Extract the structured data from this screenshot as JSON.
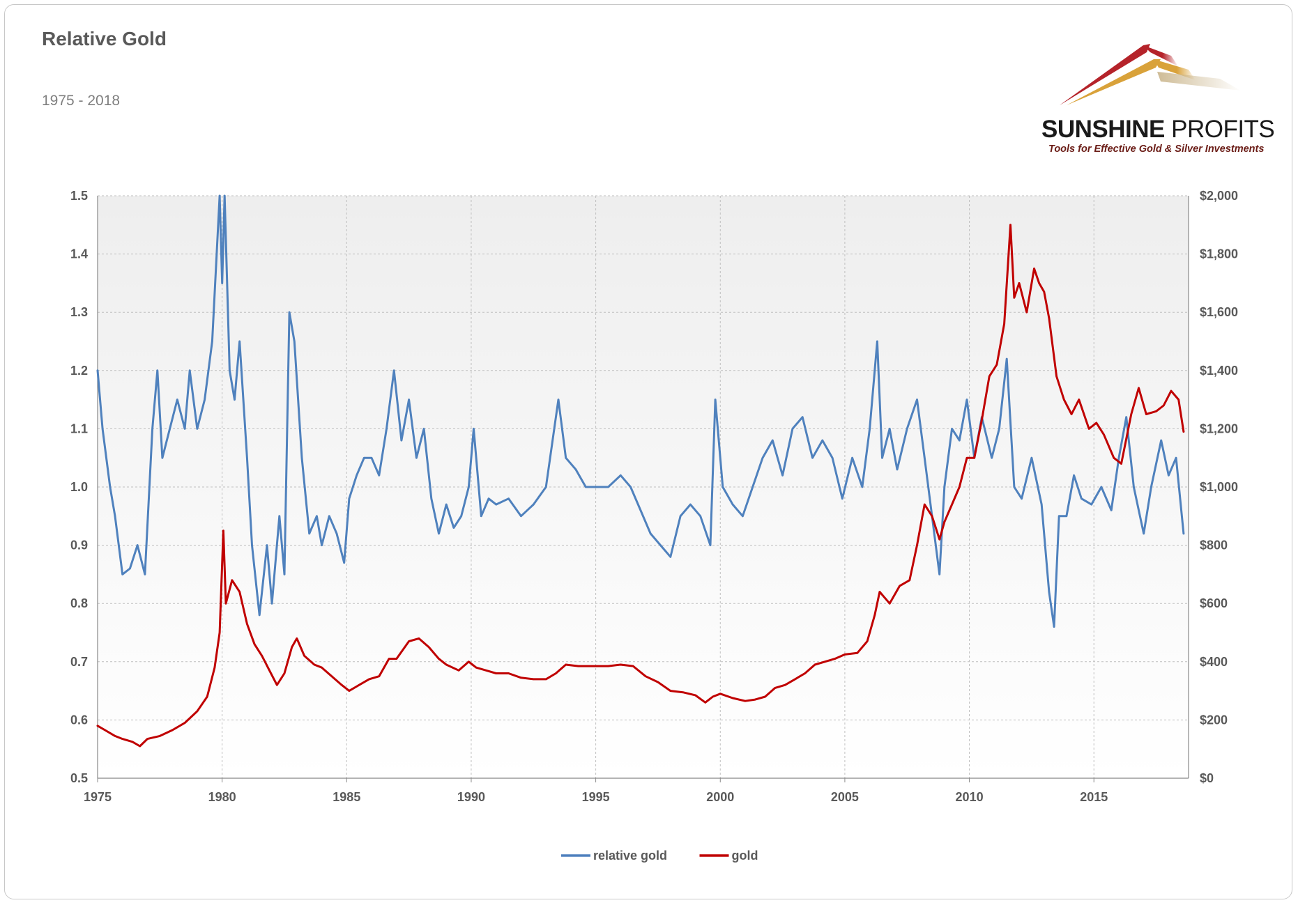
{
  "title": "Relative Gold",
  "subtitle": "1975 - 2018",
  "logo": {
    "brand_bold": "SUNSHINE",
    "brand_light": "PROFITS",
    "tagline": "Tools for Effective Gold & Silver Investments",
    "colors": [
      "#b5232a",
      "#d9a23a",
      "#c9b48a"
    ]
  },
  "colors": {
    "relative_gold": "#4f81bd",
    "gold": "#c00000",
    "plot_bg_top": "#eeeeee",
    "plot_bg_bottom": "#ffffff",
    "grid": "#bfbfbf"
  },
  "chart_data": {
    "type": "line",
    "title": "Relative Gold",
    "subtitle": "1975 - 2018",
    "x_ticks": [
      "1975",
      "1980",
      "1985",
      "1990",
      "1995",
      "2000",
      "2005",
      "2010",
      "2015"
    ],
    "x_range": [
      1975,
      2018.8
    ],
    "y_left_range": [
      0.5,
      1.5
    ],
    "y_left_ticks": [
      "0.5",
      "0.6",
      "0.7",
      "0.8",
      "0.9",
      "1.0",
      "1.1",
      "1.2",
      "1.3",
      "1.4",
      "1.5"
    ],
    "y_right_range": [
      0,
      2000
    ],
    "y_right_ticks": [
      "$0",
      "$200",
      "$400",
      "$600",
      "$800",
      "$1,000",
      "$1,200",
      "$1,400",
      "$1,600",
      "$1,800",
      "$2,000"
    ],
    "grid": true,
    "legend_position": "bottom",
    "series": [
      {
        "name": "relative gold",
        "axis": "left",
        "x": [
          1975.0,
          1975.2,
          1975.5,
          1975.7,
          1976.0,
          1976.3,
          1976.6,
          1976.9,
          1977.2,
          1977.4,
          1977.6,
          1977.9,
          1978.2,
          1978.5,
          1978.7,
          1979.0,
          1979.3,
          1979.6,
          1979.9,
          1980.0,
          1980.1,
          1980.3,
          1980.5,
          1980.7,
          1981.0,
          1981.2,
          1981.5,
          1981.8,
          1982.0,
          1982.3,
          1982.5,
          1982.7,
          1982.9,
          1983.2,
          1983.5,
          1983.8,
          1984.0,
          1984.3,
          1984.6,
          1984.9,
          1985.1,
          1985.4,
          1985.7,
          1986.0,
          1986.3,
          1986.6,
          1986.9,
          1987.2,
          1987.5,
          1987.8,
          1988.1,
          1988.4,
          1988.7,
          1989.0,
          1989.3,
          1989.6,
          1989.9,
          1990.1,
          1990.4,
          1990.7,
          1991.0,
          1991.5,
          1992.0,
          1992.5,
          1993.0,
          1993.5,
          1993.8,
          1994.2,
          1994.6,
          1995.0,
          1995.5,
          1996.0,
          1996.4,
          1996.8,
          1997.2,
          1997.6,
          1998.0,
          1998.4,
          1998.8,
          1999.2,
          1999.6,
          1999.8,
          2000.1,
          2000.5,
          2000.9,
          2001.3,
          2001.7,
          2002.1,
          2002.5,
          2002.9,
          2003.3,
          2003.7,
          2004.1,
          2004.5,
          2004.9,
          2005.3,
          2005.7,
          2006.0,
          2006.3,
          2006.5,
          2006.8,
          2007.1,
          2007.5,
          2007.9,
          2008.2,
          2008.5,
          2008.8,
          2009.0,
          2009.3,
          2009.6,
          2009.9,
          2010.2,
          2010.5,
          2010.9,
          2011.2,
          2011.5,
          2011.8,
          2012.1,
          2012.5,
          2012.9,
          2013.2,
          2013.4,
          2013.6,
          2013.9,
          2014.2,
          2014.5,
          2014.9,
          2015.3,
          2015.7,
          2016.0,
          2016.3,
          2016.6,
          2017.0,
          2017.3,
          2017.7,
          2018.0,
          2018.3,
          2018.6
        ],
        "values": [
          1.2,
          1.1,
          1.0,
          0.95,
          0.85,
          0.86,
          0.9,
          0.85,
          1.1,
          1.2,
          1.05,
          1.1,
          1.15,
          1.1,
          1.2,
          1.1,
          1.15,
          1.25,
          1.5,
          1.35,
          1.5,
          1.2,
          1.15,
          1.25,
          1.05,
          0.9,
          0.78,
          0.9,
          0.8,
          0.95,
          0.85,
          1.3,
          1.25,
          1.05,
          0.92,
          0.95,
          0.9,
          0.95,
          0.92,
          0.87,
          0.98,
          1.02,
          1.05,
          1.05,
          1.02,
          1.1,
          1.2,
          1.08,
          1.15,
          1.05,
          1.1,
          0.98,
          0.92,
          0.97,
          0.93,
          0.95,
          1.0,
          1.1,
          0.95,
          0.98,
          0.97,
          0.98,
          0.95,
          0.97,
          1.0,
          1.15,
          1.05,
          1.03,
          1.0,
          1.0,
          1.0,
          1.02,
          1.0,
          0.96,
          0.92,
          0.9,
          0.88,
          0.95,
          0.97,
          0.95,
          0.9,
          1.15,
          1.0,
          0.97,
          0.95,
          1.0,
          1.05,
          1.08,
          1.02,
          1.1,
          1.12,
          1.05,
          1.08,
          1.05,
          0.98,
          1.05,
          1.0,
          1.1,
          1.25,
          1.05,
          1.1,
          1.03,
          1.1,
          1.15,
          1.05,
          0.95,
          0.85,
          1.0,
          1.1,
          1.08,
          1.15,
          1.05,
          1.12,
          1.05,
          1.1,
          1.22,
          1.0,
          0.98,
          1.05,
          0.97,
          0.82,
          0.76,
          0.95,
          0.95,
          1.02,
          0.98,
          0.97,
          1.0,
          0.96,
          1.05,
          1.12,
          1.0,
          0.92,
          1.0,
          1.08,
          1.02,
          1.05,
          0.92
        ],
        "color": "#4f81bd"
      },
      {
        "name": "gold",
        "axis": "right",
        "x": [
          1975.0,
          1975.3,
          1975.7,
          1976.0,
          1976.4,
          1976.7,
          1977.0,
          1977.5,
          1978.0,
          1978.5,
          1979.0,
          1979.4,
          1979.7,
          1979.9,
          1980.05,
          1980.15,
          1980.4,
          1980.7,
          1981.0,
          1981.3,
          1981.6,
          1981.9,
          1982.2,
          1982.5,
          1982.8,
          1983.0,
          1983.3,
          1983.7,
          1984.0,
          1984.4,
          1984.8,
          1985.1,
          1985.5,
          1985.9,
          1986.3,
          1986.7,
          1987.0,
          1987.5,
          1987.9,
          1988.3,
          1988.7,
          1989.0,
          1989.5,
          1989.9,
          1990.2,
          1990.6,
          1991.0,
          1991.5,
          1992.0,
          1992.5,
          1993.0,
          1993.4,
          1993.8,
          1994.3,
          1995.0,
          1995.5,
          1996.0,
          1996.5,
          1997.0,
          1997.5,
          1998.0,
          1998.5,
          1999.0,
          1999.4,
          1999.7,
          2000.0,
          2000.5,
          2001.0,
          2001.4,
          2001.8,
          2002.2,
          2002.6,
          2003.0,
          2003.4,
          2003.8,
          2004.2,
          2004.6,
          2005.0,
          2005.5,
          2005.9,
          2006.2,
          2006.4,
          2006.8,
          2007.2,
          2007.6,
          2007.9,
          2008.2,
          2008.5,
          2008.8,
          2009.0,
          2009.3,
          2009.6,
          2009.9,
          2010.2,
          2010.5,
          2010.8,
          2011.1,
          2011.4,
          2011.65,
          2011.8,
          2012.0,
          2012.3,
          2012.6,
          2012.8,
          2013.0,
          2013.2,
          2013.5,
          2013.8,
          2014.1,
          2014.4,
          2014.8,
          2015.1,
          2015.4,
          2015.8,
          2016.1,
          2016.5,
          2016.8,
          2017.1,
          2017.5,
          2017.8,
          2018.1,
          2018.4,
          2018.6
        ],
        "values": [
          180,
          165,
          145,
          135,
          125,
          110,
          135,
          145,
          165,
          190,
          230,
          280,
          380,
          500,
          850,
          600,
          680,
          640,
          530,
          460,
          420,
          370,
          320,
          360,
          450,
          480,
          420,
          390,
          380,
          350,
          320,
          300,
          320,
          340,
          350,
          410,
          410,
          470,
          480,
          450,
          410,
          390,
          370,
          400,
          380,
          370,
          360,
          360,
          345,
          340,
          340,
          360,
          390,
          385,
          385,
          385,
          390,
          385,
          350,
          330,
          300,
          295,
          285,
          260,
          280,
          290,
          275,
          265,
          270,
          280,
          310,
          320,
          340,
          360,
          390,
          400,
          410,
          425,
          430,
          470,
          560,
          640,
          600,
          660,
          680,
          800,
          940,
          900,
          820,
          880,
          940,
          1000,
          1100,
          1100,
          1230,
          1380,
          1420,
          1560,
          1900,
          1650,
          1700,
          1600,
          1750,
          1700,
          1670,
          1580,
          1380,
          1300,
          1250,
          1300,
          1200,
          1220,
          1180,
          1100,
          1080,
          1250,
          1340,
          1250,
          1260,
          1280,
          1330,
          1300,
          1190
        ],
        "color": "#c00000"
      }
    ]
  }
}
